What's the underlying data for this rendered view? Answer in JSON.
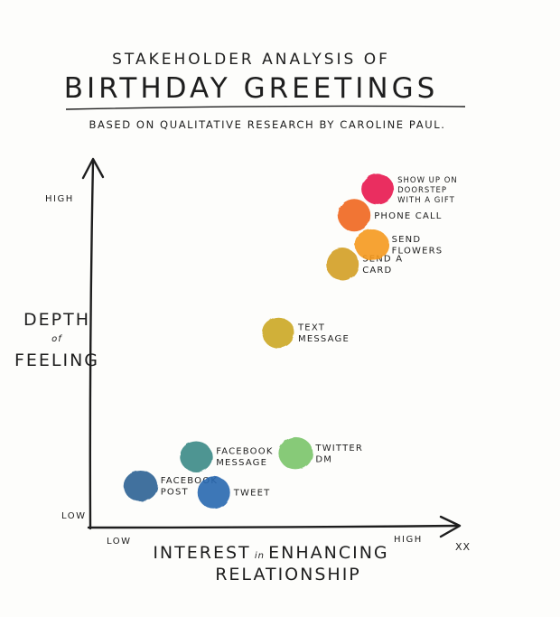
{
  "header": {
    "subtitle": "STAKEHOLDER ANALYSIS of",
    "title": "BIRTHDAY GREETINGS",
    "credit": "BASED on QUALITATIVE RESEARCH by CAROLINE PAUL."
  },
  "signature": "XX",
  "chart_data": {
    "type": "scatter",
    "title": "Stakeholder Analysis of Birthday Greetings",
    "subtitle": "Based on qualitative research by Caroline Paul.",
    "xlabel": "INTEREST in ENHANCING RELATIONSHIP",
    "ylabel": "DEPTH of FEELING",
    "x_ticks": {
      "low": "LOW",
      "high": "HIGH"
    },
    "y_ticks": {
      "low": "LOW",
      "high": "HIGH"
    },
    "xlim": [
      0,
      10
    ],
    "ylim": [
      0,
      10
    ],
    "grid": false,
    "points": [
      {
        "label": "FACEBOOK POST",
        "lines": [
          "FACEBOOK",
          "POST"
        ],
        "x": 0.7,
        "y": 0.5,
        "color": "#2e6394"
      },
      {
        "label": "TWEET",
        "lines": [
          "TWEET"
        ],
        "x": 3.2,
        "y": 0.3,
        "color": "#2a68b0"
      },
      {
        "label": "FACEBOOK MESSAGE",
        "lines": [
          "FACEBOOK",
          "MESSAGE"
        ],
        "x": 2.6,
        "y": 1.4,
        "color": "#3c8a86"
      },
      {
        "label": "TWITTER DM",
        "lines": [
          "TWITTER",
          "DM"
        ],
        "x": 6.0,
        "y": 1.5,
        "color": "#7ac46a"
      },
      {
        "label": "TEXT MESSAGE",
        "lines": [
          "TEXT",
          "MESSAGE"
        ],
        "x": 5.4,
        "y": 5.2,
        "color": "#cba722"
      },
      {
        "label": "SEND A CARD",
        "lines": [
          "SEND A",
          "CARD"
        ],
        "x": 7.6,
        "y": 7.3,
        "color": "#d3a023"
      },
      {
        "label": "SEND FLOWERS",
        "lines": [
          "SEND",
          "FLOWERS"
        ],
        "x": 8.6,
        "y": 7.9,
        "color": "#f59a20"
      },
      {
        "label": "PHONE CALL",
        "lines": [
          "PHONE CALL"
        ],
        "x": 8.0,
        "y": 8.8,
        "color": "#f0661e"
      },
      {
        "label": "SHOW UP ON DOORSTEP WITH A GIFT",
        "lines": [
          "SHOW UP ON",
          "DOORSTEP",
          "WITH A GIFT"
        ],
        "x": 8.8,
        "y": 9.6,
        "color": "#e8194f"
      }
    ]
  }
}
